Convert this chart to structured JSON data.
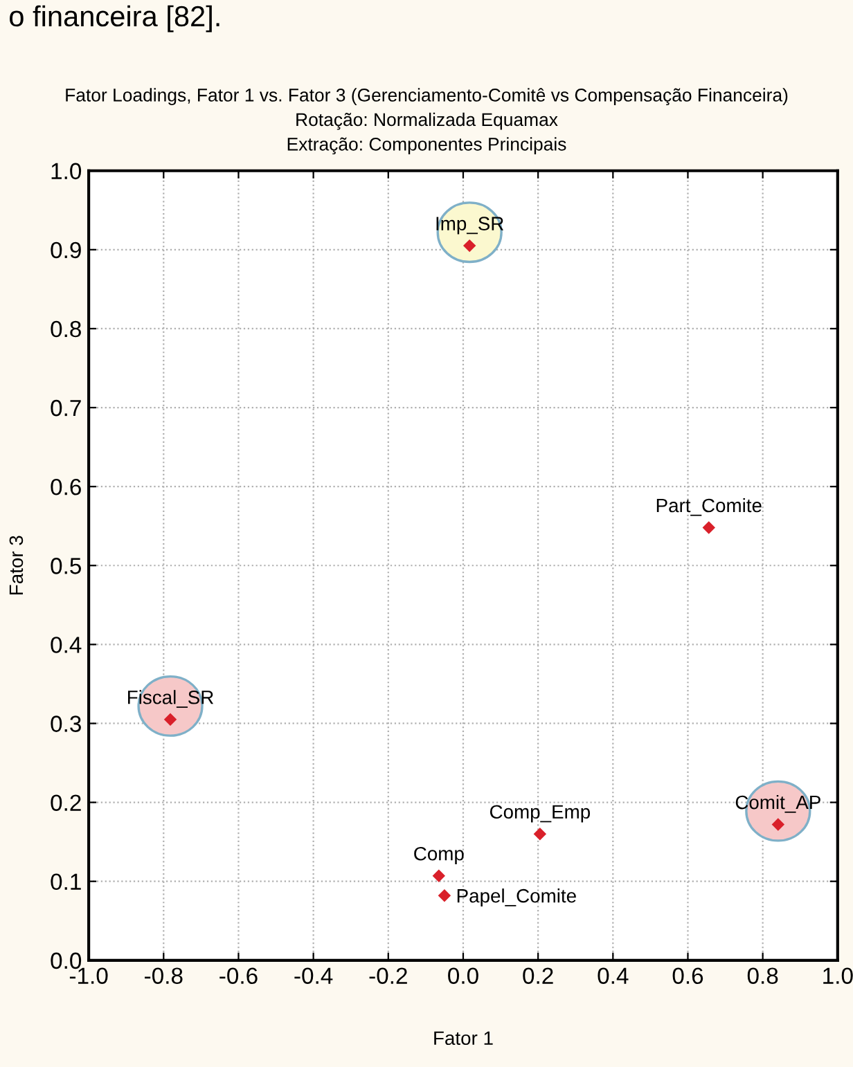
{
  "chart_data": {
    "type": "scatter",
    "title": "Fator Loadings, Fator 1 vs. Fator 3 (Gerenciamento-Comitê vs Compensação Financeira)",
    "subtitle": "Rotação: Normalizada Equamax",
    "xlabel": "Fator 1",
    "ylabel": "Fator 3",
    "x": [
      0.017,
      0.656,
      -0.782,
      -0.065,
      -0.05,
      0.205,
      0.841
    ],
    "values": [
      0.905,
      0.548,
      0.305,
      0.107,
      0.082,
      0.16,
      0.172
    ],
    "color": "#d9202a",
    "marker": "diamond",
    "grid": true,
    "xlim": [
      -1.0,
      1.0
    ],
    "xticks": [
      {
        "value": -1.0,
        "label": "-1.0"
      },
      {
        "value": -0.8,
        "label": "-0.8"
      },
      {
        "value": -0.6,
        "label": "-0.6"
      },
      {
        "value": -0.4,
        "label": "-0.4"
      },
      {
        "value": -0.2,
        "label": "-0.2"
      },
      {
        "value": 0.0,
        "label": "0.0"
      },
      0.2,
      0.4,
      0.6,
      0.8,
      {
        "value": 1.0,
        "label": "1.0"
      }
    ],
    "ylim": [
      0.0,
      1.0
    ],
    "yticks": [
      {
        "value": 0.0,
        "label": "0.0"
      },
      0.1,
      0.2,
      0.3,
      0.4,
      0.5,
      0.6,
      0.7,
      0.8,
      0.9,
      {
        "value": 1.0,
        "label": "1.0"
      }
    ],
    "annotations": [
      "o financeira [82].",
      "Extração: Componentes Principais",
      {
        "text": "Imp_SR",
        "x": 0.017,
        "y": 0.905
      },
      {
        "text": "Part_Comite",
        "x": 0.656,
        "y": 0.548
      },
      {
        "text": "Fiscal_SR",
        "x": -0.782,
        "y": 0.305
      },
      {
        "text": "Comp",
        "x": -0.065,
        "y": 0.107
      },
      {
        "text": "Papel_Comite",
        "x": -0.05,
        "y": 0.082
      },
      {
        "text": "Comp_Emp",
        "x": 0.205,
        "y": 0.16
      },
      {
        "text": "Comit_AP",
        "x": 0.841,
        "y": 0.172
      }
    ]
  }
}
